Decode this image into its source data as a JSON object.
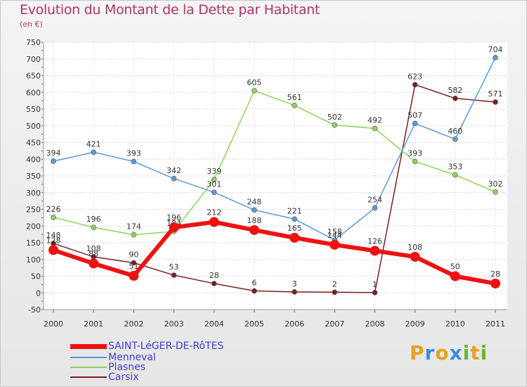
{
  "header": {
    "title": "Evolution du Montant de la Dette par Habitant",
    "subtitle": "(en €)"
  },
  "brand": {
    "letters": [
      "P",
      "r",
      "o",
      "x",
      "i",
      "t",
      "i"
    ],
    "colors": [
      "#e8a020",
      "#3a8fd8",
      "#e8a020",
      "#3a8fd8",
      "#6ab52e",
      "#e8a020",
      "#6ab52e"
    ]
  },
  "chart_data": {
    "type": "line",
    "title": "Evolution du Montant de la Dette par Habitant",
    "subtitle": "(en €)",
    "x": [
      "2000",
      "2001",
      "2002",
      "2003",
      "2004",
      "2005",
      "2006",
      "2007",
      "2008",
      "2009",
      "2010",
      "2011"
    ],
    "ylim": [
      -50,
      750
    ],
    "yticks": [
      -50,
      0,
      50,
      100,
      150,
      200,
      250,
      300,
      350,
      400,
      450,
      500,
      550,
      600,
      650,
      700,
      750
    ],
    "grid": true,
    "legend": "bottom-left",
    "series": [
      {
        "name": "SAINT-LéGER-DE-RôTES",
        "color": "#ee1111",
        "width": 6,
        "marker": 7,
        "values": [
          128,
          88,
          51,
          196,
          212,
          188,
          165,
          144,
          126,
          108,
          50,
          28
        ],
        "labels": [
          "128",
          "88",
          "51",
          "196",
          "212",
          "188",
          "165",
          "144",
          "126",
          "108",
          "50",
          "28"
        ]
      },
      {
        "name": "Menneval",
        "color": "#5a9bd5",
        "width": 1.5,
        "marker": 3.5,
        "values": [
          394,
          421,
          393,
          342,
          301,
          248,
          221,
          158,
          254,
          507,
          460,
          704
        ],
        "labels": [
          "394",
          "421",
          "393",
          "342",
          "301",
          "248",
          "221",
          "158",
          "254",
          "507",
          "460",
          "704"
        ]
      },
      {
        "name": "Plasnes",
        "color": "#8ed35a",
        "width": 1.5,
        "marker": 3.5,
        "values": [
          226,
          196,
          174,
          184,
          339,
          605,
          561,
          502,
          492,
          393,
          353,
          302
        ],
        "labels": [
          "226",
          "196",
          "174",
          "184",
          "339",
          "605",
          "561",
          "502",
          "492",
          "393",
          "353",
          "302"
        ]
      },
      {
        "name": "Carsix",
        "color": "#7a2020",
        "width": 1.5,
        "marker": 3.5,
        "values": [
          148,
          108,
          90,
          53,
          28,
          6,
          3,
          2,
          1,
          623,
          582,
          571
        ],
        "labels": [
          "148",
          "108",
          "90",
          "53",
          "28",
          "6",
          "3",
          "2",
          "1",
          "623",
          "582",
          "571"
        ]
      }
    ]
  }
}
